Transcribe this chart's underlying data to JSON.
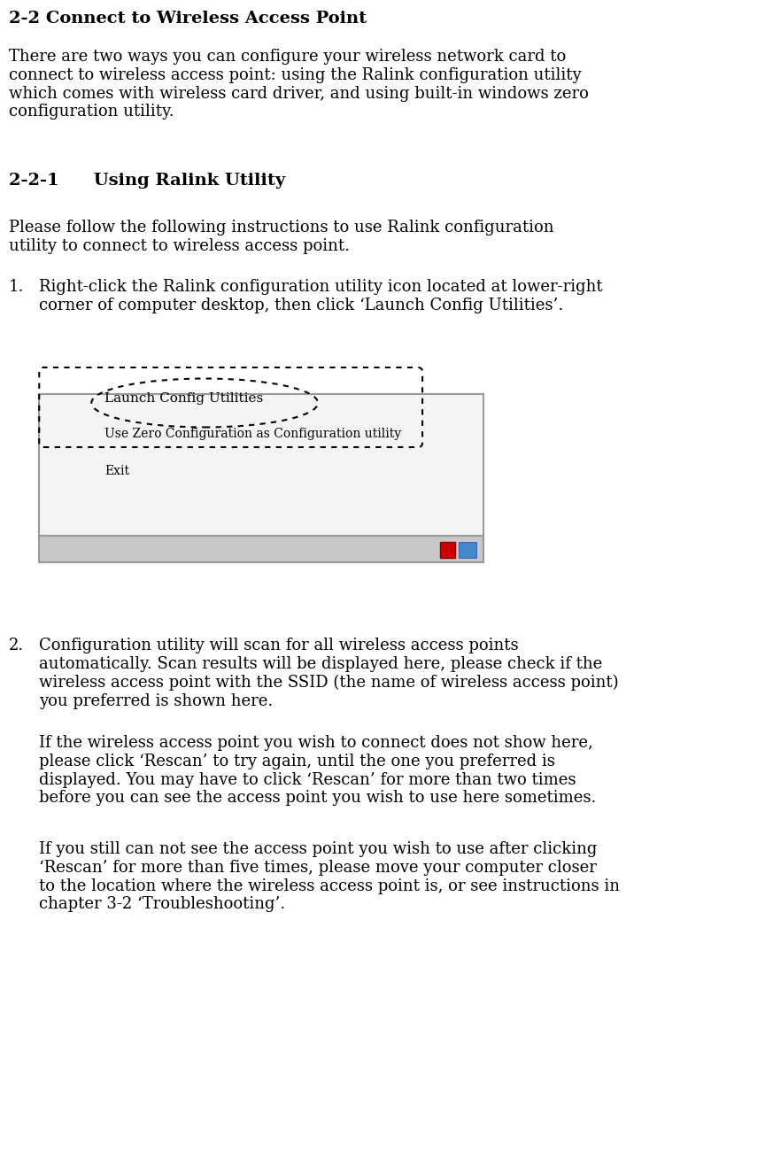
{
  "bg_color": "#ffffff",
  "title": "2-2 Connect to Wireless Access Point",
  "title_fontsize": 14,
  "title_bold": true,
  "body_fontsize": 13,
  "indent_fontsize": 13,
  "section_title": "2-2-1  Using Ralink Utility",
  "section_fontsize": 14,
  "paragraph1": "There are two ways you can configure your wireless network card to\nconnect to wireless access point: using the Ralink configuration utility\nwhich comes with wireless card driver, and using built-in windows zero\nconfiguration utility.",
  "section_para": "Please follow the following instructions to use Ralink configuration\nutility to connect to wireless access point.",
  "item1_text": "Right-click the Ralink configuration utility icon located at lower-right\ncorner of computer desktop, then click ‘Launch Config Utilities’.",
  "item2_text": "Configuration utility will scan for all wireless access points\nautomatically. Scan results will be displayed here, please check if the\nwireless access point with the SSID (the name of wireless access point)\nyou preferred is shown here.",
  "item2_para2": "If the wireless access point you wish to connect does not show here,\nplease click ‘Rescan’ to try again, until the one you preferred is\ndisplayed. You may have to click ‘Rescan’ for more than two times\nbefore you can see the access point you wish to use here sometimes.",
  "item2_para3": "If you still can not see the access point you wish to use after clicking\n‘Rescan’ for more than five times, please move your computer closer\nto the location where the wireless access point is, or see instructions in\nchapter 3-2 ‘Troubleshooting’.",
  "menu_items": [
    "Launch Config Utilities",
    "Use Zero Configuration as Configuration utility",
    "Exit"
  ],
  "menu_bg": "#f0f0f0",
  "menu_border": "#888888",
  "taskbar_bg": "#c0c0c0",
  "ellipse_color": "#000000",
  "font_family": "serif"
}
